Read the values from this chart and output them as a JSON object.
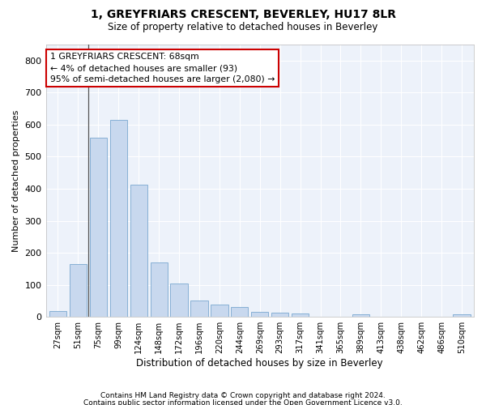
{
  "title": "1, GREYFRIARS CRESCENT, BEVERLEY, HU17 8LR",
  "subtitle": "Size of property relative to detached houses in Beverley",
  "xlabel": "Distribution of detached houses by size in Beverley",
  "ylabel": "Number of detached properties",
  "bar_color": "#c8d8ee",
  "bar_edge_color": "#7aa8d0",
  "categories": [
    "27sqm",
    "51sqm",
    "75sqm",
    "99sqm",
    "124sqm",
    "148sqm",
    "172sqm",
    "196sqm",
    "220sqm",
    "244sqm",
    "269sqm",
    "293sqm",
    "317sqm",
    "341sqm",
    "365sqm",
    "389sqm",
    "413sqm",
    "438sqm",
    "462sqm",
    "486sqm",
    "510sqm"
  ],
  "values": [
    18,
    165,
    560,
    615,
    413,
    170,
    103,
    52,
    38,
    30,
    15,
    13,
    10,
    0,
    0,
    8,
    0,
    0,
    0,
    0,
    7
  ],
  "ylim": [
    0,
    850
  ],
  "yticks": [
    0,
    100,
    200,
    300,
    400,
    500,
    600,
    700,
    800
  ],
  "annotation_line": "1 GREYFRIARS CRESCENT: 68sqm",
  "annotation_line2": "← 4% of detached houses are smaller (93)",
  "annotation_line3": "95% of semi-detached houses are larger (2,080) →",
  "footnote1": "Contains HM Land Registry data © Crown copyright and database right 2024.",
  "footnote2": "Contains public sector information licensed under the Open Government Licence v3.0.",
  "bg_color": "#ffffff",
  "plot_bg_color": "#edf2fa",
  "grid_color": "#ffffff",
  "annotation_box_color": "#ffffff",
  "annotation_box_edge": "#cc0000",
  "property_line_color": "#555555"
}
